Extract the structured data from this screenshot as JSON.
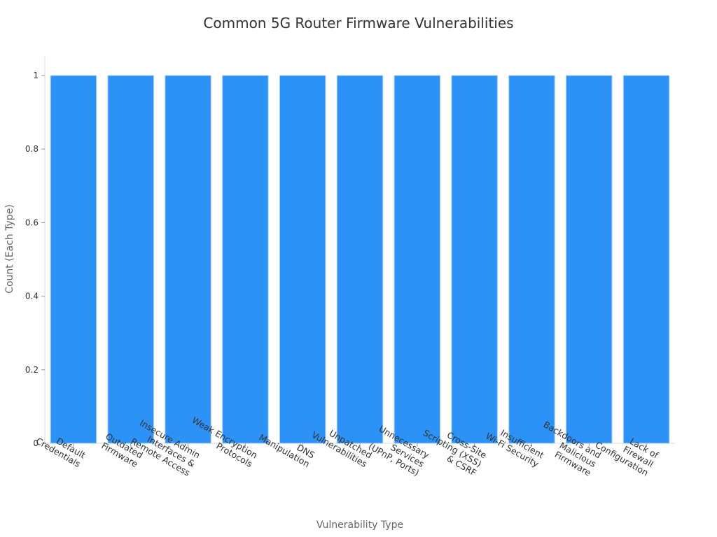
{
  "chart_data": {
    "type": "bar",
    "title": "Common 5G Router Firmware Vulnerabilities",
    "xlabel": "Vulnerability Type",
    "ylabel": "Count (Each Type)",
    "ylim": [
      0,
      1
    ],
    "yticks": [
      "0",
      "0.2",
      "0.4",
      "0.6",
      "0.8",
      "1"
    ],
    "grid": false,
    "categories": [
      [
        "Default",
        "Credentials"
      ],
      [
        "Outdated",
        "Firmware"
      ],
      [
        "Insecure Admin",
        "Interfaces &",
        "Remote Access"
      ],
      [
        "Weak Encryption",
        "Protocols"
      ],
      [
        "DNS",
        "Manipulation"
      ],
      [
        "Unpatched",
        "Vulnerabilities"
      ],
      [
        "Unnecessary",
        "Services",
        "(UPnP, Ports)"
      ],
      [
        "Cross-Site",
        "Scripting (XSS)",
        "& CSRF"
      ],
      [
        "Insufficient",
        "Wi-Fi Security"
      ],
      [
        "Backdoors and",
        "Malicious",
        "Firmware"
      ],
      [
        "Lack of",
        "Firewall",
        "Configuration"
      ]
    ],
    "values": [
      1,
      1,
      1,
      1,
      1,
      1,
      1,
      1,
      1,
      1,
      1
    ],
    "bar_color": "#2d92f6",
    "bar_edge_color": "#a9d0f8"
  }
}
